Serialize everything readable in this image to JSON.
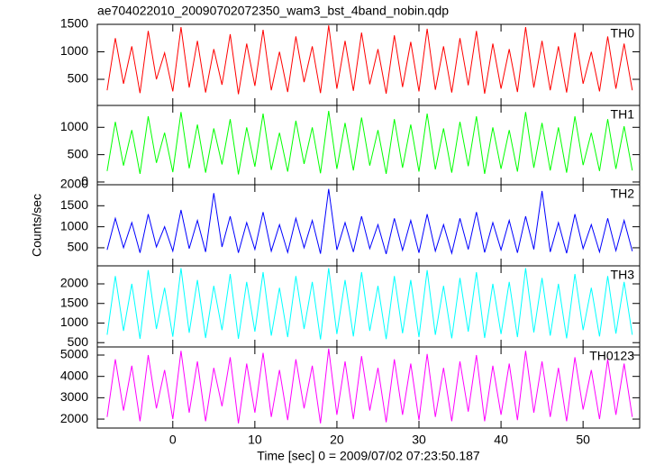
{
  "title": "ae704022010_20090702072350_wam3_bst_4band_nobin.qdp",
  "x_label": "Time [sec] 0 = 2009/07/02 07:23:50.187",
  "y_label": "Counts/sec",
  "xlim": [
    -9.2,
    56.9
  ],
  "xticks": [
    0,
    10,
    20,
    30,
    40,
    50
  ],
  "x": [
    -8,
    -7,
    -6,
    -5,
    -4,
    -3,
    -2,
    -1,
    0,
    1,
    2,
    3,
    4,
    5,
    6,
    7,
    8,
    9,
    10,
    11,
    12,
    13,
    14,
    15,
    16,
    17,
    18,
    19,
    20,
    21,
    22,
    23,
    24,
    25,
    26,
    27,
    28,
    29,
    30,
    31,
    32,
    33,
    34,
    35,
    36,
    37,
    38,
    39,
    40,
    41,
    42,
    43,
    44,
    45,
    46,
    47,
    48,
    49,
    50,
    51,
    52,
    53,
    54,
    55,
    56
  ],
  "chart_data": [
    {
      "type": "line",
      "ylim": [
        25,
        1500
      ],
      "yticks": [
        500,
        1000,
        1500
      ],
      "series": [
        {
          "name": "TH0",
          "color": "#ff0000",
          "values": [
            300,
            1250,
            420,
            1100,
            250,
            1380,
            500,
            980,
            280,
            1450,
            350,
            1200,
            260,
            1050,
            400,
            1320,
            230,
            1150,
            380,
            1400,
            300,
            1000,
            270,
            1280,
            450,
            1100,
            250,
            1480,
            330,
            1200,
            290,
            1350,
            410,
            1050,
            240,
            1300,
            360,
            1180,
            280,
            1420,
            310,
            1100,
            260,
            1250,
            390,
            1380,
            240,
            1150,
            330,
            1050,
            270,
            1450,
            350,
            1200,
            300,
            1100,
            260,
            1350,
            420,
            1000,
            280,
            1280,
            330,
            1150,
            300
          ]
        }
      ]
    },
    {
      "type": "line",
      "ylim": [
        -50,
        1400
      ],
      "yticks": [
        0,
        500,
        1000
      ],
      "series": [
        {
          "name": "TH1",
          "color": "#00ff00",
          "values": [
            200,
            1100,
            300,
            950,
            150,
            1200,
            350,
            900,
            180,
            1280,
            250,
            1050,
            170,
            980,
            320,
            1150,
            140,
            1000,
            280,
            1250,
            220,
            900,
            190,
            1120,
            330,
            1000,
            160,
            1300,
            240,
            1080,
            210,
            1180,
            300,
            950,
            150,
            1150,
            260,
            1050,
            190,
            1250,
            230,
            980,
            170,
            1100,
            290,
            1200,
            150,
            1000,
            240,
            950,
            190,
            1280,
            260,
            1080,
            210,
            1000,
            170,
            1200,
            310,
            900,
            200,
            1150,
            240,
            1020,
            210
          ]
        }
      ]
    },
    {
      "type": "line",
      "ylim": [
        70,
        2000
      ],
      "yticks": [
        500,
        1000,
        1500,
        2000
      ],
      "series": [
        {
          "name": "TH2",
          "color": "#0000ff",
          "values": [
            450,
            1200,
            500,
            1100,
            380,
            1300,
            520,
            1000,
            420,
            1400,
            480,
            1150,
            400,
            1800,
            520,
            1250,
            380,
            1100,
            460,
            1350,
            420,
            1050,
            390,
            1200,
            500,
            1150,
            360,
            1900,
            450,
            1100,
            400,
            1250,
            480,
            1050,
            350,
            1200,
            440,
            1150,
            380,
            1300,
            420,
            1050,
            370,
            1200,
            460,
            1350,
            390,
            1100,
            450,
            1150,
            380,
            1250,
            460,
            1850,
            400,
            1100,
            370,
            1300,
            480,
            1050,
            400,
            1200,
            430,
            1150,
            420
          ]
        }
      ]
    },
    {
      "type": "line",
      "ylim": [
        390,
        2460
      ],
      "yticks": [
        500,
        1000,
        1500,
        2000
      ],
      "series": [
        {
          "name": "TH3",
          "color": "#00ffff",
          "values": [
            700,
            2200,
            800,
            2000,
            600,
            2350,
            850,
            1900,
            650,
            2400,
            750,
            2100,
            620,
            1950,
            820,
            2250,
            600,
            2050,
            780,
            2300,
            680,
            1900,
            640,
            2200,
            850,
            2050,
            580,
            2400,
            720,
            2100,
            660,
            2300,
            800,
            1950,
            590,
            2200,
            740,
            2100,
            640,
            2350,
            700,
            1950,
            610,
            2150,
            780,
            2300,
            620,
            2000,
            720,
            2050,
            640,
            2400,
            760,
            2150,
            680,
            2000,
            610,
            2250,
            820,
            1900,
            660,
            2200,
            730,
            2050,
            700
          ]
        }
      ]
    },
    {
      "type": "line",
      "ylim": [
        1580,
        5380
      ],
      "yticks": [
        2000,
        3000,
        4000,
        5000
      ],
      "series": [
        {
          "name": "TH0123",
          "color": "#ff00ff",
          "values": [
            2100,
            4800,
            2400,
            4500,
            1900,
            5000,
            2500,
            4300,
            2000,
            5200,
            2300,
            4700,
            1900,
            4400,
            2600,
            4900,
            1800,
            4600,
            2300,
            5100,
            2100,
            4300,
            1950,
            4800,
            2500,
            4500,
            1800,
            5300,
            2200,
            4700,
            2000,
            4950,
            2400,
            4400,
            1850,
            4800,
            2200,
            4600,
            1950,
            5050,
            2100,
            4400,
            1900,
            4700,
            2350,
            5000,
            1900,
            4500,
            2200,
            4600,
            1950,
            5200,
            2300,
            4700,
            2100,
            4400,
            1900,
            4900,
            2450,
            4300,
            2000,
            4800,
            2200,
            4600,
            2100
          ]
        }
      ]
    }
  ]
}
